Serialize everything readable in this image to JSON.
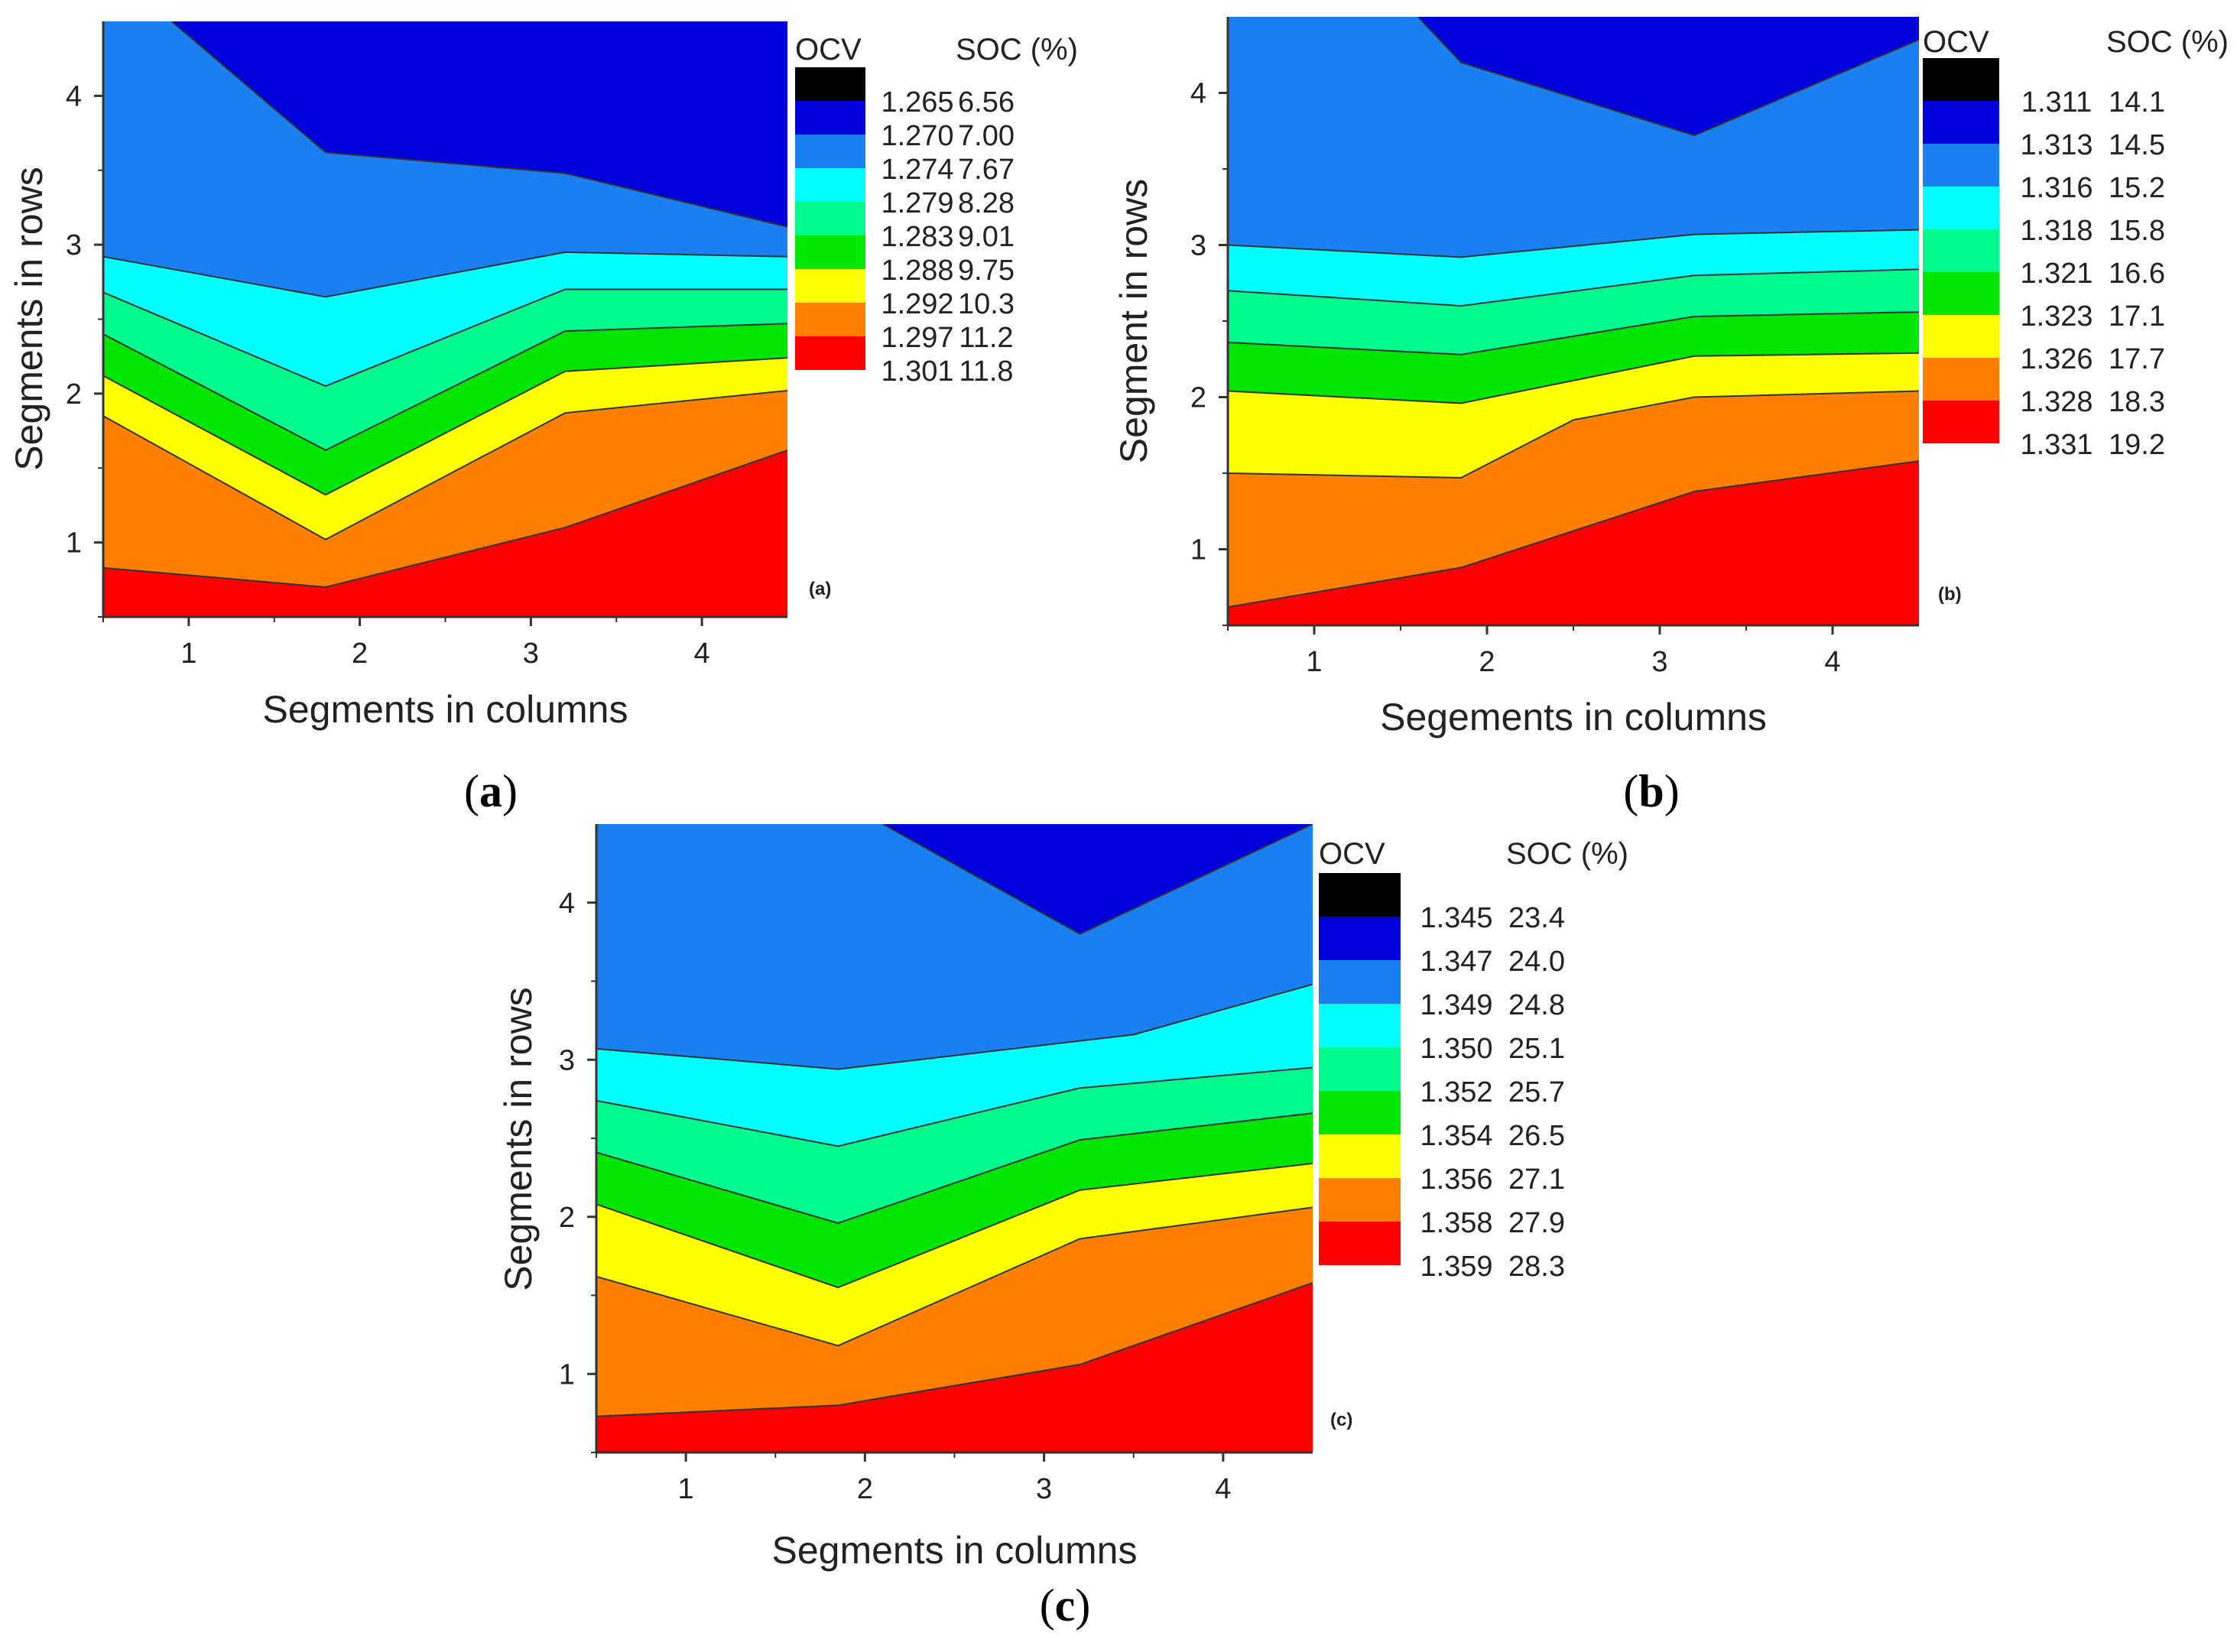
{
  "chart_data": [
    {
      "type": "contour",
      "caption_letter": "a",
      "inner_tag": "(a)",
      "xlabel": "Segments in columns",
      "ylabel": "Segments in rows",
      "xlim": [
        0.5,
        4.5
      ],
      "ylim": [
        0.5,
        4.5
      ],
      "xticks": [
        "1",
        "2",
        "3",
        "4"
      ],
      "yticks": [
        "1",
        "2",
        "3",
        "4"
      ],
      "legend": {
        "heading_ocv": "OCV",
        "heading_soc": "SOC (%)",
        "levels": [
          {
            "ocv": "1.265",
            "soc": "6.56"
          },
          {
            "ocv": "1.270",
            "soc": "7.00"
          },
          {
            "ocv": "1.274",
            "soc": "7.67"
          },
          {
            "ocv": "1.279",
            "soc": "8.28"
          },
          {
            "ocv": "1.283",
            "soc": "9.01"
          },
          {
            "ocv": "1.288",
            "soc": "9.75"
          },
          {
            "ocv": "1.292",
            "soc": "10.3"
          },
          {
            "ocv": "1.297",
            "soc": "11.2"
          },
          {
            "ocv": "1.301",
            "soc": "11.8"
          }
        ]
      },
      "boundaries": [
        [
          [
            0.5,
            4.5
          ],
          [
            4.5,
            4.5
          ]
        ],
        [
          [
            0.9,
            4.5
          ],
          [
            1.8,
            3.62
          ],
          [
            3.2,
            3.48
          ],
          [
            4.5,
            3.12
          ]
        ],
        [
          [
            0.5,
            2.92
          ],
          [
            1.8,
            2.65
          ],
          [
            3.2,
            2.95
          ],
          [
            4.5,
            2.92
          ]
        ],
        [
          [
            0.5,
            2.68
          ],
          [
            1.8,
            2.05
          ],
          [
            3.2,
            2.7
          ],
          [
            4.5,
            2.7
          ]
        ],
        [
          [
            0.5,
            2.4
          ],
          [
            1.8,
            1.62
          ],
          [
            3.2,
            2.42
          ],
          [
            4.5,
            2.47
          ]
        ],
        [
          [
            0.5,
            2.12
          ],
          [
            1.8,
            1.32
          ],
          [
            3.2,
            2.15
          ],
          [
            4.5,
            2.24
          ]
        ],
        [
          [
            0.5,
            1.85
          ],
          [
            1.8,
            1.02
          ],
          [
            3.2,
            1.87
          ],
          [
            4.5,
            2.02
          ]
        ],
        [
          [
            0.5,
            0.83
          ],
          [
            1.8,
            0.7
          ],
          [
            3.2,
            1.1
          ],
          [
            4.5,
            1.62
          ]
        ]
      ]
    },
    {
      "type": "contour",
      "caption_letter": "b",
      "inner_tag": "(b)",
      "xlabel": "Segements in columns",
      "ylabel": "Segment in rows",
      "xlim": [
        0.5,
        4.5
      ],
      "ylim": [
        0.5,
        4.5
      ],
      "xticks": [
        "1",
        "2",
        "3",
        "4"
      ],
      "yticks": [
        "1",
        "2",
        "3",
        "4"
      ],
      "legend": {
        "heading_ocv": "OCV",
        "heading_soc": "SOC (%)",
        "levels": [
          {
            "ocv": "1.311",
            "soc": "14.1"
          },
          {
            "ocv": "1.313",
            "soc": "14.5"
          },
          {
            "ocv": "1.316",
            "soc": "15.2"
          },
          {
            "ocv": "1.318",
            "soc": "15.8"
          },
          {
            "ocv": "1.321",
            "soc": "16.6"
          },
          {
            "ocv": "1.323",
            "soc": "17.1"
          },
          {
            "ocv": "1.326",
            "soc": "17.7"
          },
          {
            "ocv": "1.328",
            "soc": "18.3"
          },
          {
            "ocv": "1.331",
            "soc": "19.2"
          }
        ]
      },
      "boundaries": [
        [
          [
            0.5,
            4.5
          ],
          [
            4.5,
            4.5
          ]
        ],
        [
          [
            1.6,
            4.5
          ],
          [
            1.85,
            4.2
          ],
          [
            3.2,
            3.72
          ],
          [
            4.5,
            4.35
          ]
        ],
        [
          [
            0.5,
            3.0
          ],
          [
            1.85,
            2.92
          ],
          [
            3.2,
            3.07
          ],
          [
            4.5,
            3.1
          ]
        ],
        [
          [
            0.5,
            2.7
          ],
          [
            1.85,
            2.6
          ],
          [
            3.2,
            2.8
          ],
          [
            4.5,
            2.84
          ]
        ],
        [
          [
            0.5,
            2.36
          ],
          [
            1.85,
            2.28
          ],
          [
            3.2,
            2.53
          ],
          [
            4.5,
            2.56
          ]
        ],
        [
          [
            0.5,
            2.04
          ],
          [
            1.85,
            1.96
          ],
          [
            3.2,
            2.27
          ],
          [
            4.5,
            2.29
          ]
        ],
        [
          [
            0.5,
            1.5
          ],
          [
            1.85,
            1.47
          ],
          [
            2.5,
            1.85
          ],
          [
            3.2,
            2.0
          ],
          [
            4.5,
            2.04
          ]
        ],
        [
          [
            0.5,
            0.62
          ],
          [
            1.85,
            0.88
          ],
          [
            3.2,
            1.38
          ],
          [
            4.5,
            1.58
          ]
        ]
      ]
    },
    {
      "type": "contour",
      "caption_letter": "c",
      "inner_tag": "(c)",
      "xlabel": "Segments in columns",
      "ylabel": "Segments in rows",
      "xlim": [
        0.5,
        4.5
      ],
      "ylim": [
        0.5,
        4.5
      ],
      "xticks": [
        "1",
        "2",
        "3",
        "4"
      ],
      "yticks": [
        "1",
        "2",
        "3",
        "4"
      ],
      "legend": {
        "heading_ocv": "OCV",
        "heading_soc": "SOC (%)",
        "levels": [
          {
            "ocv": "1.345",
            "soc": "23.4"
          },
          {
            "ocv": "1.347",
            "soc": "24.0"
          },
          {
            "ocv": "1.349",
            "soc": "24.8"
          },
          {
            "ocv": "1.350",
            "soc": "25.1"
          },
          {
            "ocv": "1.352",
            "soc": "25.7"
          },
          {
            "ocv": "1.354",
            "soc": "26.5"
          },
          {
            "ocv": "1.356",
            "soc": "27.1"
          },
          {
            "ocv": "1.358",
            "soc": "27.9"
          },
          {
            "ocv": "1.359",
            "soc": "28.3"
          }
        ]
      },
      "boundaries": [
        [
          [
            0.5,
            4.5
          ],
          [
            4.5,
            4.5
          ]
        ],
        [
          [
            2.1,
            4.5
          ],
          [
            3.2,
            3.8
          ],
          [
            4.5,
            4.5
          ]
        ],
        [
          [
            0.5,
            3.07
          ],
          [
            1.85,
            2.94
          ],
          [
            3.2,
            3.12
          ],
          [
            3.5,
            3.16
          ],
          [
            4.5,
            3.48
          ]
        ],
        [
          [
            0.5,
            2.74
          ],
          [
            1.85,
            2.45
          ],
          [
            3.2,
            2.82
          ],
          [
            4.5,
            2.95
          ]
        ],
        [
          [
            0.5,
            2.41
          ],
          [
            1.85,
            1.96
          ],
          [
            3.2,
            2.49
          ],
          [
            4.5,
            2.66
          ]
        ],
        [
          [
            0.5,
            2.08
          ],
          [
            1.85,
            1.55
          ],
          [
            3.2,
            2.17
          ],
          [
            4.5,
            2.34
          ]
        ],
        [
          [
            0.5,
            1.62
          ],
          [
            1.85,
            1.18
          ],
          [
            3.2,
            1.86
          ],
          [
            4.5,
            2.06
          ]
        ],
        [
          [
            0.5,
            0.73
          ],
          [
            1.85,
            0.8
          ],
          [
            3.2,
            1.06
          ],
          [
            4.5,
            1.58
          ]
        ]
      ]
    }
  ],
  "colors": {
    "levels": [
      "#000000",
      "#0000dd",
      "#1a7ff0",
      "#00ffff",
      "#00fa8c",
      "#00e600",
      "#ffff00",
      "#ff8000",
      "#ff0000"
    ],
    "axis": "#333333",
    "contour_line": "#333333"
  }
}
